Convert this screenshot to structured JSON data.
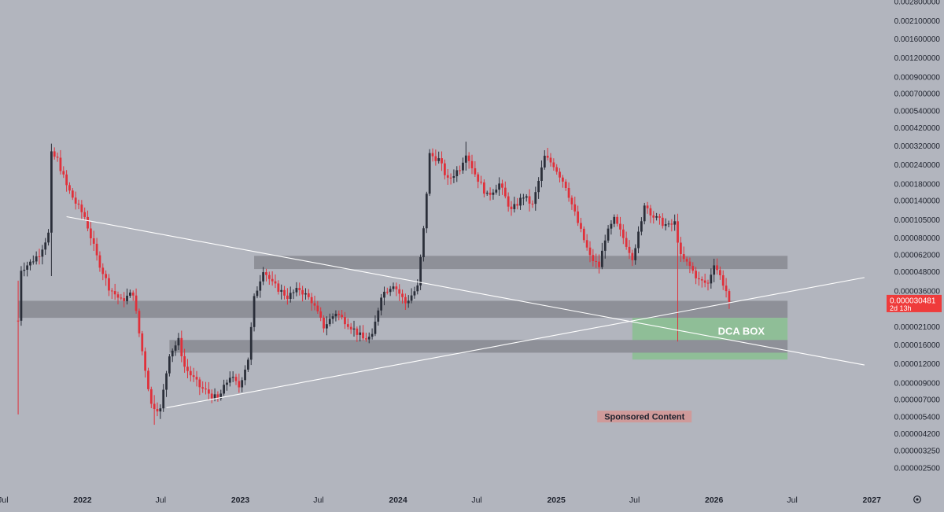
{
  "colors": {
    "background": "#b2b5be",
    "up_candle": "#2a2e39",
    "down_candle": "#e0303a",
    "zone_gray": "#8e9098",
    "dca_green": "#8fbe97",
    "trend_line": "#ffffff",
    "axis_text": "#1e222d",
    "price_tag": "#ef3b3b"
  },
  "icons": {
    "settings": "gear-icon"
  },
  "chart_data": {
    "type": "candlestick",
    "scale": "log",
    "timeframe": "weekly",
    "x_range": [
      "2021-06-24",
      "2027-03-18"
    ],
    "y_range": [
      2.2e-06,
      0.0028
    ],
    "x_ticks": [
      {
        "date": "2021-07-01",
        "label": "Jul"
      },
      {
        "date": "2022-01-01",
        "label": "2022"
      },
      {
        "date": "2022-07-01",
        "label": "Jul"
      },
      {
        "date": "2023-01-01",
        "label": "2023"
      },
      {
        "date": "2023-07-01",
        "label": "Jul"
      },
      {
        "date": "2024-01-01",
        "label": "2024"
      },
      {
        "date": "2024-07-01",
        "label": "Jul"
      },
      {
        "date": "2025-01-01",
        "label": "2025"
      },
      {
        "date": "2025-07-01",
        "label": "Jul"
      },
      {
        "date": "2026-01-01",
        "label": "2026"
      },
      {
        "date": "2026-07-01",
        "label": "Jul"
      },
      {
        "date": "2027-01-01",
        "label": "2027"
      }
    ],
    "y_ticks": [
      {
        "value": 0.0028,
        "label": "0.002800000"
      },
      {
        "value": 0.0021,
        "label": "0.002100000"
      },
      {
        "value": 0.0016,
        "label": "0.001600000"
      },
      {
        "value": 0.0012,
        "label": "0.001200000"
      },
      {
        "value": 0.0009,
        "label": "0.000900000"
      },
      {
        "value": 0.0007,
        "label": "0.000700000"
      },
      {
        "value": 0.00054,
        "label": "0.000540000"
      },
      {
        "value": 0.00042,
        "label": "0.000420000"
      },
      {
        "value": 0.00032,
        "label": "0.000320000"
      },
      {
        "value": 0.00024,
        "label": "0.000240000"
      },
      {
        "value": 0.00018,
        "label": "0.000180000"
      },
      {
        "value": 0.00014,
        "label": "0.000140000"
      },
      {
        "value": 0.000105,
        "label": "0.000105000"
      },
      {
        "value": 8e-05,
        "label": "0.000080000"
      },
      {
        "value": 6.2e-05,
        "label": "0.000062000"
      },
      {
        "value": 4.8e-05,
        "label": "0.000048000"
      },
      {
        "value": 3.6e-05,
        "label": "0.000036000"
      },
      {
        "value": 2.1e-05,
        "label": "0.000021000"
      },
      {
        "value": 1.6e-05,
        "label": "0.000016000"
      },
      {
        "value": 1.2e-05,
        "label": "0.000012000"
      },
      {
        "value": 9e-06,
        "label": "0.000009000"
      },
      {
        "value": 7e-06,
        "label": "0.000007000"
      },
      {
        "value": 5.4e-06,
        "label": "0.000005400"
      },
      {
        "value": 4.2e-06,
        "label": "0.000004200"
      },
      {
        "value": 3.25e-06,
        "label": "0.000003250"
      },
      {
        "value": 2.5e-06,
        "label": "0.000002500"
      }
    ],
    "price_tag": {
      "price": 3.048e-05,
      "label": "0.000030481",
      "countdown": "2d 13h"
    },
    "keypoints": [
      [
        "2021-08-05",
        2.3e-05
      ],
      [
        "2021-08-12",
        5e-05
      ],
      [
        "2021-09-02",
        5.5e-05
      ],
      [
        "2021-09-23",
        6.3e-05
      ],
      [
        "2021-10-14",
        8.5e-05
      ],
      [
        "2021-10-21",
        0.00028
      ],
      [
        "2021-11-04",
        0.00026
      ],
      [
        "2021-11-25",
        0.000175
      ],
      [
        "2021-12-16",
        0.000135
      ],
      [
        "2022-01-06",
        0.00011
      ],
      [
        "2022-02-03",
        6e-05
      ],
      [
        "2022-03-03",
        3.8e-05
      ],
      [
        "2022-03-31",
        3.1e-05
      ],
      [
        "2022-04-28",
        3.5e-05
      ],
      [
        "2022-05-12",
        1.9e-05
      ],
      [
        "2022-06-09",
        6.5e-06
      ],
      [
        "2022-06-30",
        6e-06
      ],
      [
        "2022-07-21",
        1.4e-05
      ],
      [
        "2022-08-11",
        1.7e-05
      ],
      [
        "2022-08-25",
        1.15e-05
      ],
      [
        "2022-09-29",
        8.5e-06
      ],
      [
        "2022-11-10",
        7e-06
      ],
      [
        "2022-12-08",
        1e-05
      ],
      [
        "2022-12-29",
        8.5e-06
      ],
      [
        "2023-01-19",
        1.3e-05
      ],
      [
        "2023-02-02",
        3.2e-05
      ],
      [
        "2023-02-23",
        5e-05
      ],
      [
        "2023-03-16",
        4e-05
      ],
      [
        "2023-04-20",
        3.3e-05
      ],
      [
        "2023-05-18",
        3.7e-05
      ],
      [
        "2023-06-15",
        3.1e-05
      ],
      [
        "2023-07-13",
        2.1e-05
      ],
      [
        "2023-08-10",
        2.6e-05
      ],
      [
        "2023-09-07",
        2.2e-05
      ],
      [
        "2023-10-12",
        1.75e-05
      ],
      [
        "2023-11-02",
        1.8e-05
      ],
      [
        "2023-11-23",
        3.4e-05
      ],
      [
        "2023-12-21",
        4e-05
      ],
      [
        "2024-01-18",
        3e-05
      ],
      [
        "2024-02-15",
        3.8e-05
      ],
      [
        "2024-02-29",
        9e-05
      ],
      [
        "2024-03-14",
        0.00028
      ],
      [
        "2024-04-04",
        0.00026
      ],
      [
        "2024-04-25",
        0.00019
      ],
      [
        "2024-05-23",
        0.00023
      ],
      [
        "2024-06-06",
        0.00029
      ],
      [
        "2024-06-27",
        0.00021
      ],
      [
        "2024-07-25",
        0.00015
      ],
      [
        "2024-08-22",
        0.00018
      ],
      [
        "2024-09-19",
        0.00012
      ],
      [
        "2024-10-17",
        0.00015
      ],
      [
        "2024-11-07",
        0.00013
      ],
      [
        "2024-12-05",
        0.00027
      ],
      [
        "2024-12-26",
        0.00024
      ],
      [
        "2025-01-23",
        0.000175
      ],
      [
        "2025-02-20",
        0.0001
      ],
      [
        "2025-03-20",
        6e-05
      ],
      [
        "2025-04-10",
        5.2e-05
      ],
      [
        "2025-04-24",
        8e-05
      ],
      [
        "2025-05-15",
        0.000105
      ],
      [
        "2025-06-05",
        8e-05
      ],
      [
        "2025-06-26",
        6e-05
      ],
      [
        "2025-07-17",
        0.0001
      ],
      [
        "2025-07-24",
        0.000135
      ],
      [
        "2025-08-14",
        0.00011
      ],
      [
        "2025-09-04",
        0.0001
      ],
      [
        "2025-09-18",
        9.5e-05
      ],
      [
        "2025-10-02",
        0.0001
      ],
      [
        "2025-10-16",
        6e-05
      ],
      [
        "2025-11-06",
        5.2e-05
      ],
      [
        "2025-11-27",
        4.2e-05
      ],
      [
        "2025-12-18",
        4e-05
      ],
      [
        "2026-01-01",
        5.5e-05
      ],
      [
        "2026-01-15",
        4.5e-05
      ],
      [
        "2026-01-29",
        3.6e-05
      ],
      [
        "2026-02-05",
        3.048e-05
      ]
    ],
    "special_wicks": [
      {
        "date": "2021-08-05",
        "high": 4.2e-05,
        "low": 5.6e-06
      },
      {
        "date": "2021-10-21",
        "high": 0.00033,
        "low": 4.5e-05
      },
      {
        "date": "2024-06-06",
        "high": 0.00034,
        "low": 0.00022
      },
      {
        "date": "2025-10-09",
        "high": 0.000115,
        "low": 1.68e-05
      },
      {
        "date": "2022-06-16",
        "high": 7.5e-06,
        "low": 4.8e-06
      }
    ],
    "zones": [
      {
        "name": "upper-resistance",
        "from": "2023-02-02",
        "to": "2026-06-20",
        "low": 5e-05,
        "high": 6.1e-05,
        "color": "#8e9098"
      },
      {
        "name": "main-support",
        "from": "2021-08-05",
        "to": "2026-06-20",
        "low": 2.4e-05,
        "high": 3.1e-05,
        "color": "#8e9098"
      },
      {
        "name": "dca-box",
        "from": "2025-06-26",
        "to": "2026-06-20",
        "low": 1.28e-05,
        "high": 2.4e-05,
        "color": "#8fbe97"
      },
      {
        "name": "lower-support",
        "from": "2022-07-21",
        "to": "2026-06-20",
        "low": 1.42e-05,
        "high": 1.72e-05,
        "color": "#8e9098"
      }
    ],
    "trendlines": [
      {
        "name": "descending-line",
        "from": [
          "2021-11-25",
          0.00011
        ],
        "to": [
          "2026-12-15",
          1.18e-05
        ]
      },
      {
        "name": "ascending-line",
        "from": [
          "2022-07-14",
          6.2e-06
        ],
        "to": [
          "2026-12-15",
          4.4e-05
        ]
      }
    ],
    "annotations": [
      {
        "text": "DCA BOX",
        "date": "2026-03-05",
        "price": 1.95e-05
      },
      {
        "text": "Sponsored Content",
        "date": "2025-07-24",
        "price": 5.4e-06
      }
    ]
  }
}
